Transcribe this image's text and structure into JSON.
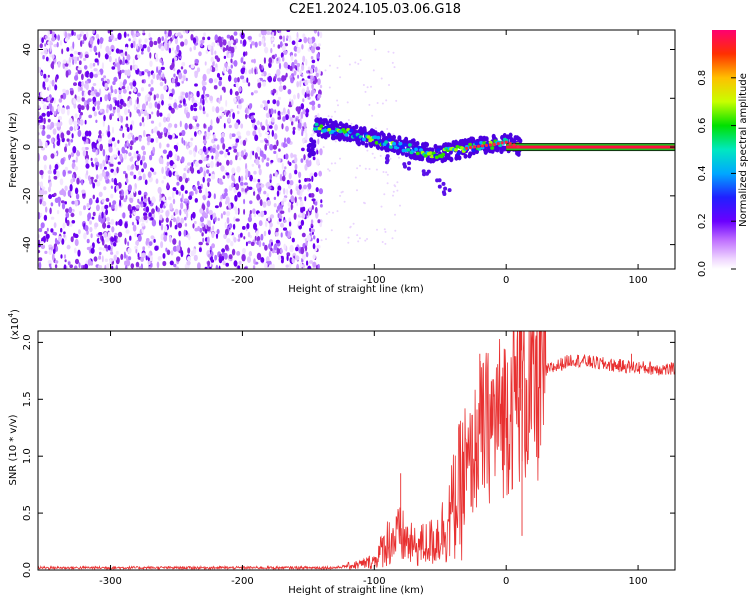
{
  "title": "C2E1.2024.105.03.06.G18",
  "colors": {
    "snr_line": "#e83030",
    "carrier_outline": "#103010",
    "axis": "#000000",
    "colorbar": [
      "#f0d8ff",
      "#d090ff",
      "#8a2be2",
      "#1a1aff",
      "#00c8ff",
      "#00e060",
      "#b0ff00",
      "#ffd000",
      "#ff5000",
      "#ff0060"
    ]
  },
  "chart_data": [
    {
      "type": "heatmap",
      "xlabel": "Height of straight line (km)",
      "ylabel": "Frequency (Hz)",
      "xlim": [
        -355,
        128
      ],
      "ylim": [
        -50,
        48
      ],
      "xticks": [
        -300,
        -200,
        -100,
        0,
        100
      ],
      "yticks": [
        -40,
        -20,
        0,
        20,
        40
      ],
      "colorbar": {
        "label": "Normalized spectral amplitude",
        "range": [
          0,
          1
        ],
        "ticks": [
          "0.0",
          "0.2",
          "0.4",
          "0.6",
          "0.8"
        ]
      },
      "noise_region": {
        "x_range": [
          -355,
          -140
        ],
        "y_range": [
          -50,
          48
        ]
      },
      "carrier_trace": [
        {
          "x": -145,
          "y": 8
        },
        {
          "x": -130,
          "y": 7
        },
        {
          "x": -115,
          "y": 5
        },
        {
          "x": -100,
          "y": 3
        },
        {
          "x": -85,
          "y": 1
        },
        {
          "x": -70,
          "y": -1
        },
        {
          "x": -55,
          "y": -3
        },
        {
          "x": -45,
          "y": -2
        },
        {
          "x": -35,
          "y": -1
        },
        {
          "x": -25,
          "y": 0
        },
        {
          "x": -10,
          "y": 1
        },
        {
          "x": 0,
          "y": 2
        },
        {
          "x": 10,
          "y": 0
        },
        {
          "x": 128,
          "y": 0
        }
      ],
      "secondary_trace": [
        {
          "x": -90,
          "y": -5
        },
        {
          "x": -75,
          "y": -8
        },
        {
          "x": -60,
          "y": -11
        },
        {
          "x": -50,
          "y": -15
        },
        {
          "x": -45,
          "y": -18
        }
      ]
    },
    {
      "type": "line",
      "xlabel": "Height of straight line (km)",
      "ylabel": "SNR (10 * v/v)",
      "yscale_label": "(x10",
      "yscale_exp": "4",
      "yscale_close": ")",
      "xlim": [
        -355,
        128
      ],
      "ylim": [
        0,
        2.1
      ],
      "xticks": [
        -300,
        -200,
        -100,
        0,
        100
      ],
      "yticks": [
        "0.0",
        "0.5",
        "1.0",
        "1.5",
        "2.0"
      ],
      "series": [
        {
          "color": "#e83030",
          "points": [
            {
              "x": -355,
              "y": 0.02
            },
            {
              "x": -200,
              "y": 0.02
            },
            {
              "x": -130,
              "y": 0.02
            },
            {
              "x": -110,
              "y": 0.05
            },
            {
              "x": -100,
              "y": 0.08
            },
            {
              "x": -90,
              "y": 0.25
            },
            {
              "x": -80,
              "y": 0.3
            },
            {
              "x": -70,
              "y": 0.2
            },
            {
              "x": -55,
              "y": 0.25
            },
            {
              "x": -45,
              "y": 0.4
            },
            {
              "x": -35,
              "y": 0.7
            },
            {
              "x": -25,
              "y": 1.0
            },
            {
              "x": -20,
              "y": 1.2
            },
            {
              "x": -10,
              "y": 1.3
            },
            {
              "x": 0,
              "y": 1.4
            },
            {
              "x": 10,
              "y": 1.6
            },
            {
              "x": 20,
              "y": 1.55
            },
            {
              "x": 30,
              "y": 1.75
            },
            {
              "x": 50,
              "y": 1.85
            },
            {
              "x": 80,
              "y": 1.8
            },
            {
              "x": 100,
              "y": 1.78
            },
            {
              "x": 128,
              "y": 1.76
            }
          ],
          "spikes": [
            {
              "x": -80,
              "y": 0.85
            },
            {
              "x": -20,
              "y": 1.9
            },
            {
              "x": 10,
              "y": 2.1
            },
            {
              "x": 12,
              "y": 0.3
            },
            {
              "x": 95,
              "y": 1.9
            }
          ]
        }
      ]
    }
  ]
}
